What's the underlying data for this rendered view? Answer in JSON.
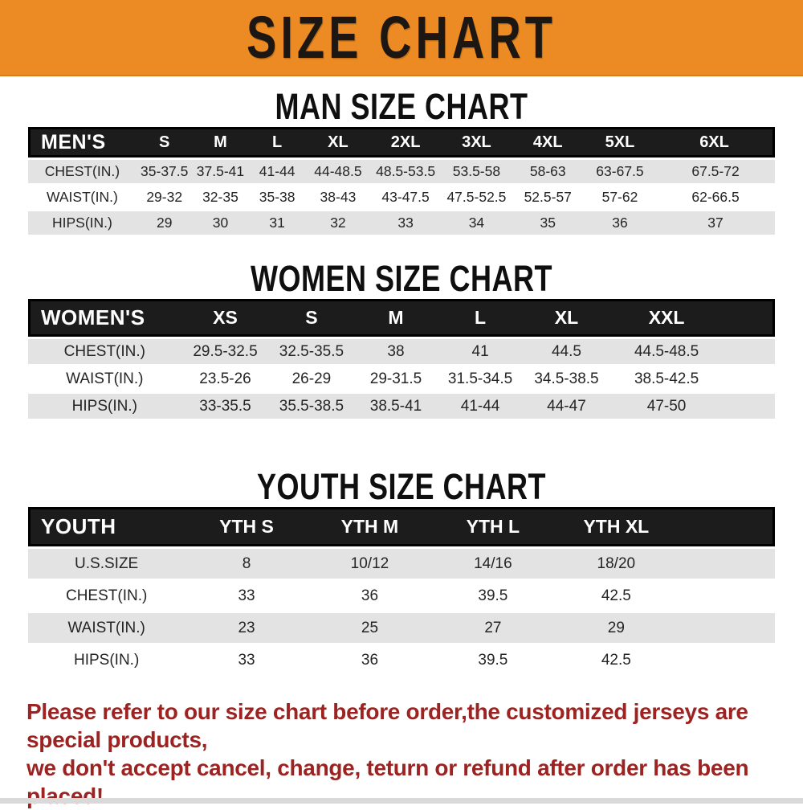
{
  "banner": {
    "title": "SIZE CHART"
  },
  "colors": {
    "banner_bg": "#EC8B23",
    "table_header_bg": "#1C1C1C",
    "row_stripe_gray": "#E3E3E3",
    "footer_text_red": "#9C2321"
  },
  "sections": [
    {
      "heading": "MAN SIZE CHART",
      "table": {
        "header": [
          "MEN'S",
          "S",
          "M",
          "L",
          "XL",
          "2XL",
          "3XL",
          "4XL",
          "5XL",
          "6XL"
        ],
        "rows": [
          [
            "CHEST(IN.)",
            "35-37.5",
            "37.5-41",
            "41-44",
            "44-48.5",
            "48.5-53.5",
            "53.5-58",
            "58-63",
            "63-67.5",
            "67.5-72"
          ],
          [
            "WAIST(IN.)",
            "29-32",
            "32-35",
            "35-38",
            "38-43",
            "43-47.5",
            "47.5-52.5",
            "52.5-57",
            "57-62",
            "62-66.5"
          ],
          [
            "HIPS(IN.)",
            "29",
            "30",
            "31",
            "32",
            "33",
            "34",
            "35",
            "36",
            "37"
          ]
        ]
      }
    },
    {
      "heading": "WOMEN SIZE CHART",
      "table": {
        "header": [
          "WOMEN'S",
          "XS",
          "S",
          "M",
          "L",
          "XL",
          "XXL"
        ],
        "rows": [
          [
            "CHEST(IN.)",
            "29.5-32.5",
            "32.5-35.5",
            "38",
            "41",
            "44.5",
            "44.5-48.5"
          ],
          [
            "WAIST(IN.)",
            "23.5-26",
            "26-29",
            "29-31.5",
            "31.5-34.5",
            "34.5-38.5",
            "38.5-42.5"
          ],
          [
            "HIPS(IN.)",
            "33-35.5",
            "35.5-38.5",
            "38.5-41",
            "41-44",
            "44-47",
            "47-50"
          ]
        ]
      }
    },
    {
      "heading": "YOUTH SIZE CHART",
      "table": {
        "header": [
          "YOUTH",
          "YTH S",
          "YTH M",
          "YTH L",
          "YTH XL"
        ],
        "rows": [
          [
            "U.S.SIZE",
            "8",
            "10/12",
            "14/16",
            "18/20"
          ],
          [
            "CHEST(IN.)",
            "33",
            "36",
            "39.5",
            "42.5"
          ],
          [
            "WAIST(IN.)",
            "23",
            "25",
            "27",
            "29"
          ],
          [
            "HIPS(IN.)",
            "33",
            "36",
            "39.5",
            "42.5"
          ]
        ]
      }
    }
  ],
  "footer": {
    "line1": "Please refer to our size chart before order,the customized jerseys are special products,",
    "line2": "we don't accept cancel, change, teturn or refund after order has been placed!"
  }
}
